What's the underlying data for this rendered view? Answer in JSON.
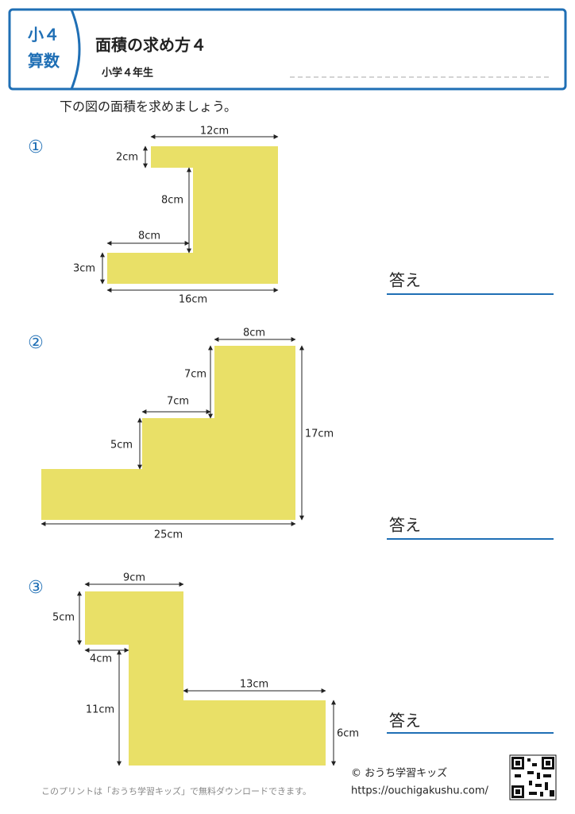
{
  "header": {
    "grade": "小４",
    "subject": "算数",
    "title": "面積の求め方４",
    "subtitle": "小学４年生"
  },
  "instruction": "下の図の面積を求めましょう。",
  "problems": [
    {
      "number": "①",
      "labels": [
        "12cm",
        "2cm",
        "8cm",
        "8cm",
        "3cm",
        "16cm"
      ],
      "answer_label": "答え"
    },
    {
      "number": "②",
      "labels": [
        "8cm",
        "7cm",
        "7cm",
        "5cm",
        "17cm",
        "25cm"
      ],
      "answer_label": "答え"
    },
    {
      "number": "③",
      "labels": [
        "9cm",
        "5cm",
        "4cm",
        "11cm",
        "13cm",
        "6cm"
      ],
      "answer_label": "答え"
    }
  ],
  "footer": {
    "note": "このプリントは「おうち学習キッズ」で無料ダウンロードできます。",
    "copyright": "© おうち学習キッズ",
    "url": "https://ouchigakushu.com/"
  }
}
